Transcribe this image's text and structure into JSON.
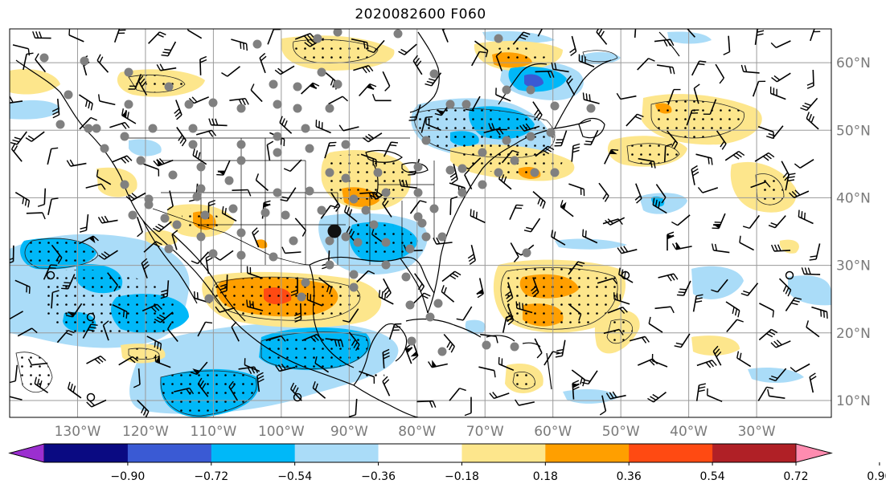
{
  "title": "2020082600 F060",
  "map": {
    "lon_range": [
      -140,
      -19
    ],
    "lat_range": [
      7.5,
      65
    ],
    "lon_ticks": [
      {
        "value": -130,
        "label": "130°W"
      },
      {
        "value": -120,
        "label": "120°W"
      },
      {
        "value": -110,
        "label": "110°W"
      },
      {
        "value": -100,
        "label": "100°W"
      },
      {
        "value": -90,
        "label": "90°W"
      },
      {
        "value": -80,
        "label": "80°W"
      },
      {
        "value": -70,
        "label": "70°W"
      },
      {
        "value": -60,
        "label": "60°W"
      },
      {
        "value": -50,
        "label": "50°W"
      },
      {
        "value": -40,
        "label": "40°W"
      },
      {
        "value": -30,
        "label": "30°W"
      }
    ],
    "lat_ticks": [
      {
        "value": 60,
        "label": "60°N"
      },
      {
        "value": 50,
        "label": "50°N"
      },
      {
        "value": 40,
        "label": "40°N"
      },
      {
        "value": 30,
        "label": "30°N"
      },
      {
        "value": 20,
        "label": "20°N"
      },
      {
        "value": 10,
        "label": "10°N"
      }
    ],
    "gridlines": true
  },
  "colorbar": {
    "ticks": [
      "−0.90",
      "−0.72",
      "−0.54",
      "−0.36",
      "−0.18",
      "0.18",
      "0.36",
      "0.54",
      "0.72",
      "0.90"
    ],
    "colors": [
      "#9b2fd0",
      "#0a0a82",
      "#3a5ad4",
      "#00b8f8",
      "#aadcf8",
      "#ffffff",
      "#fde68c",
      "#ff9f00",
      "#ff4a12",
      "#b02026",
      "#ff8cb0"
    ],
    "extend": "both"
  },
  "chart_data": {
    "type": "heatmap",
    "title": "2020082600 F060",
    "xlabel": "",
    "ylabel": "",
    "xlim": [
      -140,
      -19
    ],
    "ylim": [
      7.5,
      65
    ],
    "contour_levels": [
      -0.9,
      -0.72,
      -0.54,
      -0.36,
      -0.18,
      0.18,
      0.36,
      0.54,
      0.72,
      0.9
    ],
    "regions": [
      {
        "level": "positive",
        "value": 0.45,
        "lon": -98,
        "lat": 28.5,
        "note": "max over Mexico/Texas"
      },
      {
        "level": "positive",
        "value": 0.3,
        "lon": -66,
        "lat": 28.5
      },
      {
        "level": "positive",
        "value": 0.3,
        "lon": -91,
        "lat": 39.5
      },
      {
        "level": "positive",
        "value": 0.3,
        "lon": -65,
        "lat": 61.5
      },
      {
        "level": "positive",
        "value": 0.25,
        "lon": -48,
        "lat": 49.5
      },
      {
        "level": "negative",
        "value": -0.45,
        "lon": -113,
        "lat": 24.0
      },
      {
        "level": "negative",
        "value": -0.45,
        "lon": -98,
        "lat": 18.0
      },
      {
        "level": "negative",
        "value": -0.4,
        "lon": -86,
        "lat": 34.5
      },
      {
        "level": "negative",
        "value": -0.4,
        "lon": -64,
        "lat": 51.5
      },
      {
        "level": "negative",
        "value": -0.6,
        "lon": -64,
        "lat": 58.5
      }
    ],
    "grid": true,
    "colorbar_position": "bottom"
  }
}
